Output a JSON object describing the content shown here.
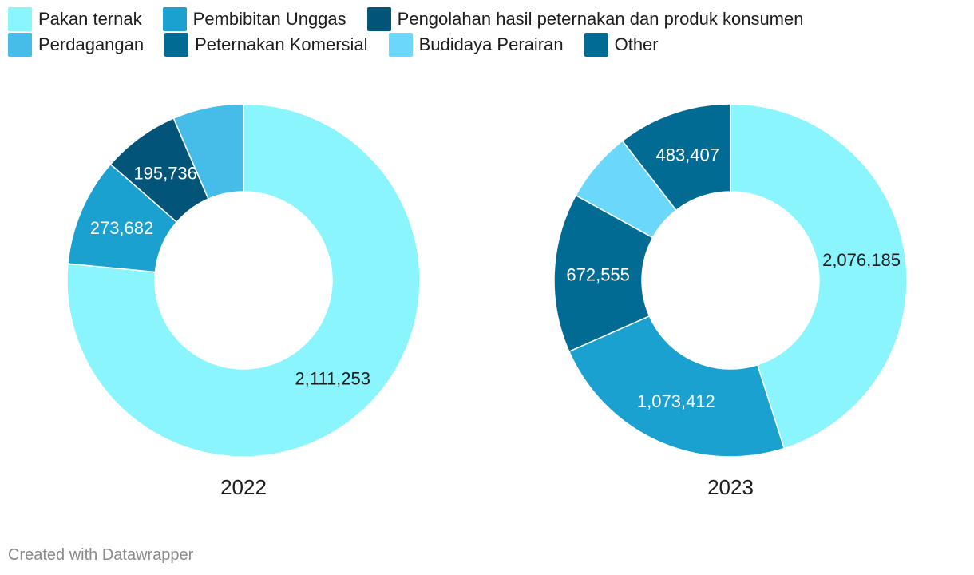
{
  "chart_data": {
    "type": "pie",
    "variant": "donut",
    "legend_position": "top-left",
    "categories": [
      {
        "name": "Pakan ternak",
        "color": "#8bf5fe"
      },
      {
        "name": "Pembibitan Unggas",
        "color": "#1aa1cf"
      },
      {
        "name": "Pengolahan hasil peternakan dan produk konsumen",
        "color": "#035479"
      },
      {
        "name": "Perdagangan",
        "color": "#46bce9"
      },
      {
        "name": "Peternakan Komersial",
        "color": "#026b94"
      },
      {
        "name": "Budidaya Perairan",
        "color": "#6bd8fb"
      },
      {
        "name": "Other",
        "color": "#026b94"
      }
    ],
    "charts": [
      {
        "title": "2022",
        "slices": [
          {
            "name": "Pakan ternak",
            "value": 2111253,
            "label": "2,111,253"
          },
          {
            "name": "Pembibitan Unggas",
            "value": 273682,
            "label": "273,682"
          },
          {
            "name": "Pengolahan hasil peternakan dan produk konsumen",
            "value": 195736,
            "label": "195,736"
          },
          {
            "name": "Perdagangan",
            "value": 179000,
            "label": ""
          }
        ]
      },
      {
        "title": "2023",
        "slices": [
          {
            "name": "Pakan ternak",
            "value": 2076185,
            "label": "2,076,185"
          },
          {
            "name": "Pembibitan Unggas",
            "value": 1073412,
            "label": "1,073,412"
          },
          {
            "name": "Peternakan Komersial",
            "value": 672555,
            "label": "672,555"
          },
          {
            "name": "Budidaya Perairan",
            "value": 300000,
            "label": ""
          },
          {
            "name": "Other",
            "value": 483407,
            "label": "483,407"
          }
        ]
      }
    ]
  },
  "footer": {
    "credit": "Created with Datawrapper"
  }
}
